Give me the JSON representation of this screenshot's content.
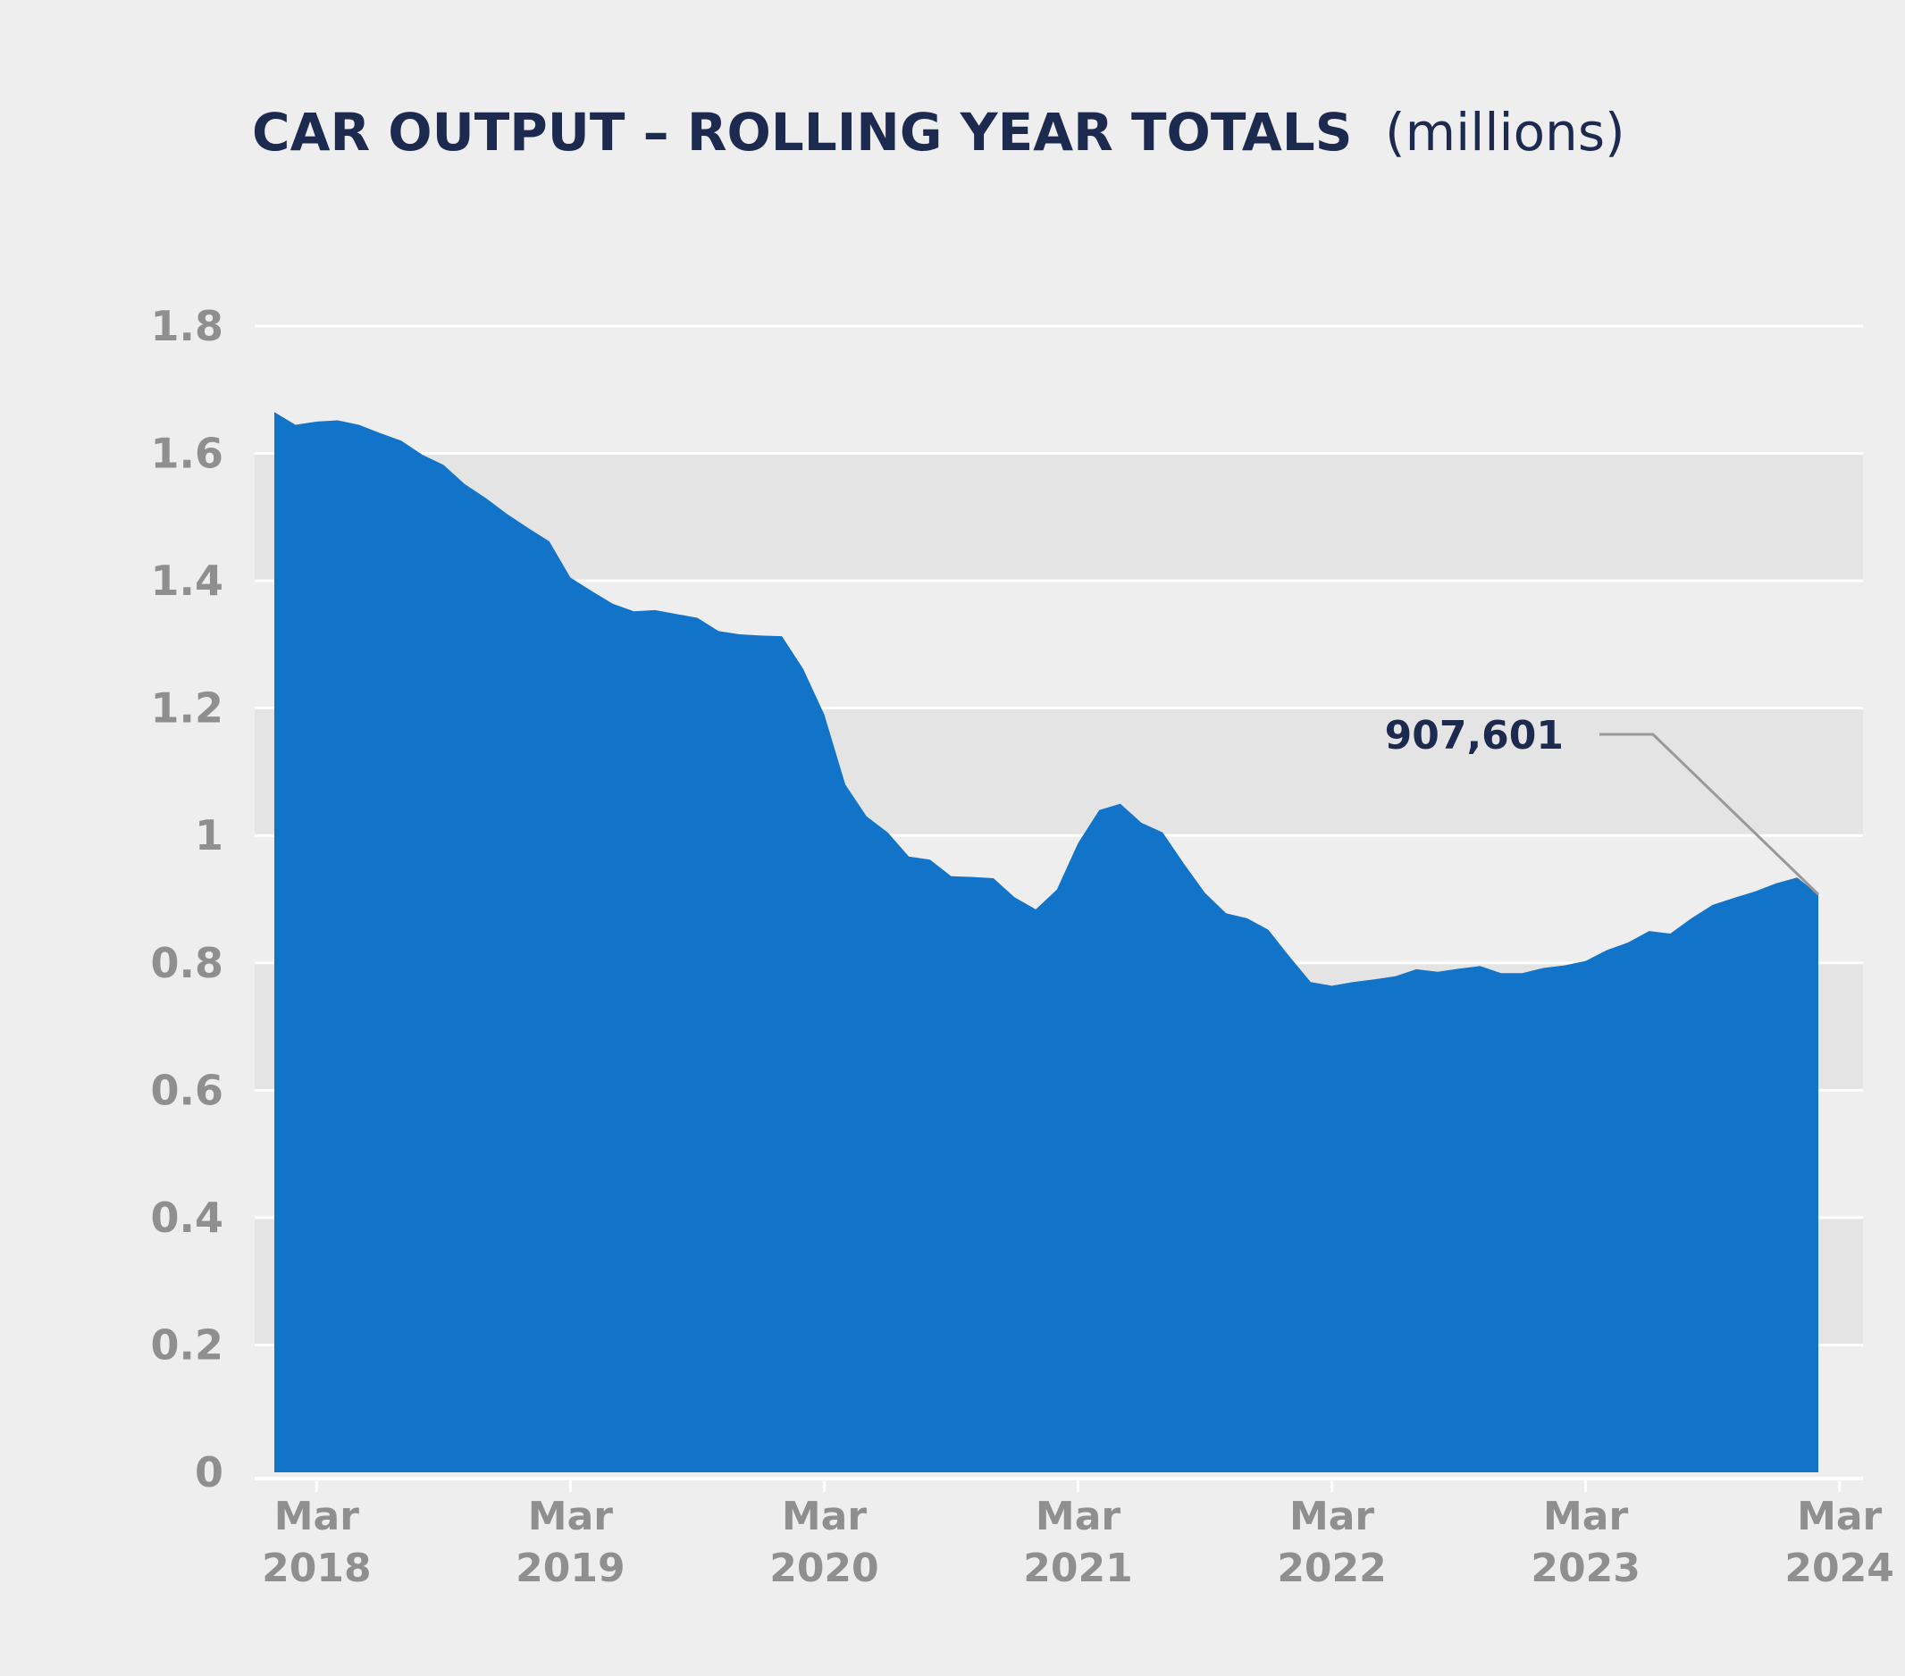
{
  "chart_data": {
    "type": "area",
    "title": "CAR OUTPUT – ROLLING YEAR TOTALS",
    "unit": "(millions)",
    "ylim": [
      0,
      1.8
    ],
    "yticks": [
      "0",
      "0.2",
      "0.4",
      "0.6",
      "0.8",
      "1",
      "1.2",
      "1.4",
      "1.6",
      "1.8"
    ],
    "xticks": [
      {
        "month": "Mar",
        "year": "2018",
        "index": 2
      },
      {
        "month": "Mar",
        "year": "2019",
        "index": 14
      },
      {
        "month": "Mar",
        "year": "2020",
        "index": 26
      },
      {
        "month": "Mar",
        "year": "2021",
        "index": 38
      },
      {
        "month": "Mar",
        "year": "2022",
        "index": 50
      },
      {
        "month": "Mar",
        "year": "2023",
        "index": 62
      },
      {
        "month": "Mar",
        "year": "2024",
        "index": 74
      }
    ],
    "series": [
      {
        "color": "#1274c9",
        "values": [
          1.665,
          1.645,
          1.65,
          1.652,
          1.645,
          1.632,
          1.62,
          1.598,
          1.582,
          1.552,
          1.53,
          1.505,
          1.483,
          1.462,
          1.405,
          1.384,
          1.364,
          1.352,
          1.354,
          1.348,
          1.342,
          1.321,
          1.316,
          1.314,
          1.313,
          1.262,
          1.19,
          1.08,
          1.03,
          1.005,
          0.967,
          0.962,
          0.936,
          0.935,
          0.933,
          0.903,
          0.884,
          0.915,
          0.988,
          1.04,
          1.05,
          1.02,
          1.005,
          0.956,
          0.91,
          0.878,
          0.87,
          0.852,
          0.81,
          0.77,
          0.764,
          0.77,
          0.774,
          0.779,
          0.79,
          0.786,
          0.791,
          0.795,
          0.784,
          0.784,
          0.792,
          0.796,
          0.803,
          0.82,
          0.832,
          0.85,
          0.846,
          0.87,
          0.891,
          0.902,
          0.912,
          0.925,
          0.934,
          0.907601
        ]
      }
    ],
    "annotation": {
      "label": "907,601",
      "value": 0.907601
    }
  }
}
